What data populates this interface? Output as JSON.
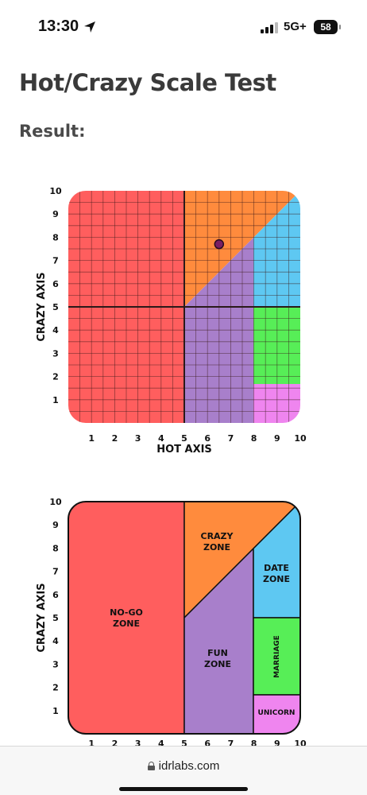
{
  "status_bar": {
    "time": "13:30",
    "network": "5G+",
    "battery": "58"
  },
  "page": {
    "title": "Hot/Crazy Scale Test",
    "result_label": "Result:"
  },
  "colors": {
    "nogo": "#ff5e5e",
    "crazy": "#ff8b3d",
    "fun": "#a87fcb",
    "date": "#5ec8f2",
    "marriage": "#57ee57",
    "unicorn": "#ef85ef",
    "marker": "#7a1f63"
  },
  "chart_data": [
    {
      "type": "scatter",
      "xlabel": "HOT AXIS",
      "ylabel": "CRAZY AXIS",
      "xlim": [
        0,
        10
      ],
      "ylim": [
        0,
        10
      ],
      "x_ticks": [
        "1",
        "2",
        "3",
        "4",
        "5",
        "6",
        "7",
        "8",
        "9",
        "10"
      ],
      "y_ticks": [
        "1",
        "2",
        "3",
        "4",
        "5",
        "6",
        "7",
        "8",
        "9",
        "10"
      ],
      "grid": true,
      "points": [
        {
          "x": 6.5,
          "y": 7.7
        }
      ],
      "zones": [
        "nogo",
        "crazy",
        "fun",
        "date",
        "marriage",
        "unicorn"
      ]
    },
    {
      "type": "diagram",
      "ylabel": "CRAZY AXIS",
      "x_ticks": [
        "1",
        "2",
        "3",
        "4",
        "5",
        "6",
        "7",
        "8",
        "9",
        "10"
      ],
      "y_ticks": [
        "1",
        "2",
        "3",
        "4",
        "5",
        "6",
        "7",
        "8",
        "9",
        "10"
      ],
      "zone_labels": {
        "nogo": [
          "NO-GO",
          "ZONE"
        ],
        "crazy": [
          "CRAZY",
          "ZONE"
        ],
        "fun": [
          "FUN",
          "ZONE"
        ],
        "date": [
          "DATE",
          "ZONE"
        ],
        "marriage": [
          "MARRIAGE"
        ],
        "unicorn": [
          "UNICORN"
        ]
      }
    }
  ],
  "browser": {
    "url": "idrlabs.com"
  }
}
